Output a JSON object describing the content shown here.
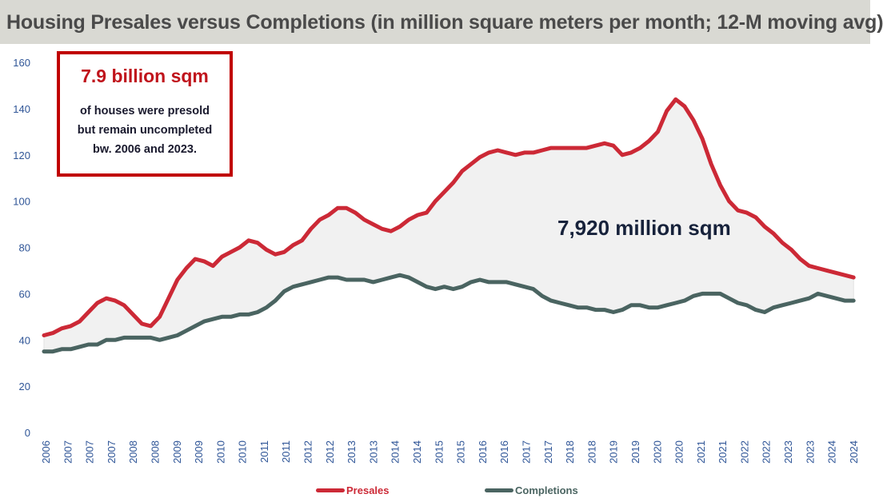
{
  "header": {
    "title": "Housing Presales versus Completions (in million square meters per month; 12-M moving avg)"
  },
  "callout": {
    "headline": "7.9 billion sqm",
    "body_lines": [
      "of houses were presold",
      "but remain uncompleted",
      "bw. 2006 and 2023."
    ]
  },
  "annotation": {
    "gap_label": "7,920 million sqm"
  },
  "legend": {
    "presales": "Presales",
    "completions": "Completions"
  },
  "colors": {
    "presales": "#cc2936",
    "completions": "#4a6461",
    "gap_fill": "#f1f1f1",
    "axis_text": "#2f5597",
    "title_band": "#d9d9d3",
    "callout_border": "#c00000"
  },
  "chart_data": {
    "type": "line",
    "title": "Housing Presales versus Completions (in million square meters per month; 12-M moving avg)",
    "xlabel": "",
    "ylabel": "",
    "ylim": [
      0,
      160
    ],
    "yticks": [
      0,
      20,
      40,
      60,
      80,
      100,
      120,
      140,
      160
    ],
    "xlim": [
      2006.0,
      2024.25
    ],
    "x_tick_labels": [
      "2006",
      "2007",
      "2007",
      "2007",
      "2008",
      "2008",
      "2009",
      "2009",
      "2010",
      "2010",
      "2011",
      "2011",
      "2012",
      "2012",
      "2013",
      "2013",
      "2014",
      "2014",
      "2015",
      "2015",
      "2016",
      "2016",
      "2017",
      "2017",
      "2018",
      "2018",
      "2019",
      "2019",
      "2020",
      "2020",
      "2021",
      "2021",
      "2022",
      "2022",
      "2023",
      "2023",
      "2024",
      "2024"
    ],
    "grid": false,
    "legend_position": "bottom",
    "fill_between_series": true,
    "series": [
      {
        "name": "Presales",
        "x": [
          2006.0,
          2006.2,
          2006.4,
          2006.6,
          2006.8,
          2007.0,
          2007.2,
          2007.4,
          2007.6,
          2007.8,
          2008.0,
          2008.2,
          2008.4,
          2008.6,
          2008.8,
          2009.0,
          2009.2,
          2009.4,
          2009.6,
          2009.8,
          2010.0,
          2010.2,
          2010.4,
          2010.6,
          2010.8,
          2011.0,
          2011.2,
          2011.4,
          2011.6,
          2011.8,
          2012.0,
          2012.2,
          2012.4,
          2012.6,
          2012.8,
          2013.0,
          2013.2,
          2013.4,
          2013.6,
          2013.8,
          2014.0,
          2014.2,
          2014.4,
          2014.6,
          2014.8,
          2015.0,
          2015.2,
          2015.4,
          2015.6,
          2015.8,
          2016.0,
          2016.2,
          2016.4,
          2016.6,
          2016.8,
          2017.0,
          2017.2,
          2017.4,
          2017.6,
          2017.8,
          2018.0,
          2018.2,
          2018.4,
          2018.6,
          2018.8,
          2019.0,
          2019.2,
          2019.4,
          2019.6,
          2019.8,
          2020.0,
          2020.2,
          2020.4,
          2020.6,
          2020.8,
          2021.0,
          2021.2,
          2021.4,
          2021.6,
          2021.8,
          2022.0,
          2022.2,
          2022.4,
          2022.6,
          2022.8,
          2023.0,
          2023.2,
          2023.4,
          2023.6,
          2023.8,
          2024.0,
          2024.2
        ],
        "values": [
          42,
          43,
          45,
          46,
          48,
          52,
          56,
          58,
          57,
          55,
          51,
          47,
          46,
          50,
          58,
          66,
          71,
          75,
          74,
          72,
          76,
          78,
          80,
          83,
          82,
          79,
          77,
          78,
          81,
          83,
          88,
          92,
          94,
          97,
          97,
          95,
          92,
          90,
          88,
          87,
          89,
          92,
          94,
          95,
          100,
          104,
          108,
          113,
          116,
          119,
          121,
          122,
          121,
          120,
          121,
          121,
          122,
          123,
          123,
          123,
          123,
          123,
          124,
          125,
          124,
          120,
          121,
          123,
          126,
          130,
          139,
          144,
          141,
          135,
          127,
          116,
          107,
          100,
          96,
          95,
          93,
          89,
          86,
          82,
          79,
          75,
          72,
          71,
          70,
          69,
          68,
          67
        ]
      },
      {
        "name": "Completions",
        "x": [
          2006.0,
          2006.2,
          2006.4,
          2006.6,
          2006.8,
          2007.0,
          2007.2,
          2007.4,
          2007.6,
          2007.8,
          2008.0,
          2008.2,
          2008.4,
          2008.6,
          2008.8,
          2009.0,
          2009.2,
          2009.4,
          2009.6,
          2009.8,
          2010.0,
          2010.2,
          2010.4,
          2010.6,
          2010.8,
          2011.0,
          2011.2,
          2011.4,
          2011.6,
          2011.8,
          2012.0,
          2012.2,
          2012.4,
          2012.6,
          2012.8,
          2013.0,
          2013.2,
          2013.4,
          2013.6,
          2013.8,
          2014.0,
          2014.2,
          2014.4,
          2014.6,
          2014.8,
          2015.0,
          2015.2,
          2015.4,
          2015.6,
          2015.8,
          2016.0,
          2016.2,
          2016.4,
          2016.6,
          2016.8,
          2017.0,
          2017.2,
          2017.4,
          2017.6,
          2017.8,
          2018.0,
          2018.2,
          2018.4,
          2018.6,
          2018.8,
          2019.0,
          2019.2,
          2019.4,
          2019.6,
          2019.8,
          2020.0,
          2020.2,
          2020.4,
          2020.6,
          2020.8,
          2021.0,
          2021.2,
          2021.4,
          2021.6,
          2021.8,
          2022.0,
          2022.2,
          2022.4,
          2022.6,
          2022.8,
          2023.0,
          2023.2,
          2023.4,
          2023.6,
          2023.8,
          2024.0,
          2024.2
        ],
        "values": [
          35,
          35,
          36,
          36,
          37,
          38,
          38,
          40,
          40,
          41,
          41,
          41,
          41,
          40,
          41,
          42,
          44,
          46,
          48,
          49,
          50,
          50,
          51,
          51,
          52,
          54,
          57,
          61,
          63,
          64,
          65,
          66,
          67,
          67,
          66,
          66,
          66,
          65,
          66,
          67,
          68,
          67,
          65,
          63,
          62,
          63,
          62,
          63,
          65,
          66,
          65,
          65,
          65,
          64,
          63,
          62,
          59,
          57,
          56,
          55,
          54,
          54,
          53,
          53,
          52,
          53,
          55,
          55,
          54,
          54,
          55,
          56,
          57,
          59,
          60,
          60,
          60,
          58,
          56,
          55,
          53,
          52,
          54,
          55,
          56,
          57,
          58,
          60,
          59,
          58,
          57,
          57
        ]
      }
    ]
  }
}
